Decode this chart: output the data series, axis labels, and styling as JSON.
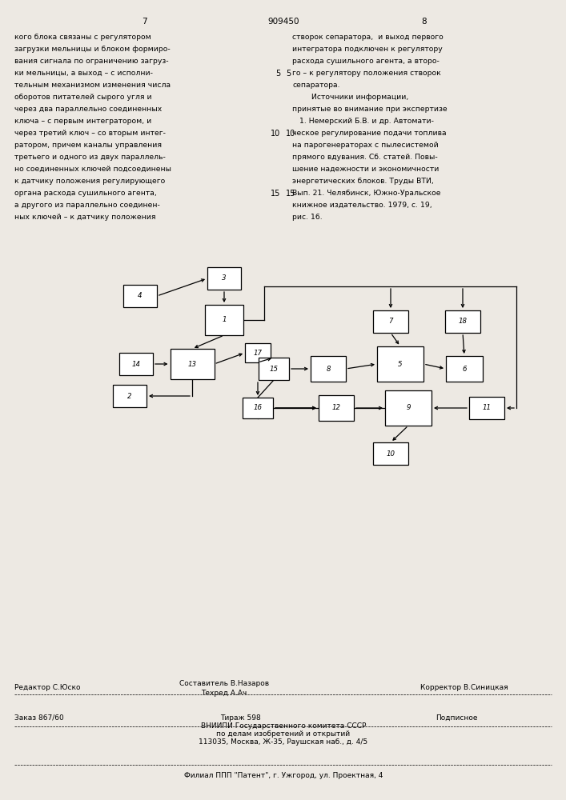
{
  "page_bg": "#ede9e3",
  "header_page_nums": [
    "7",
    "909450",
    "8"
  ],
  "left_text": [
    "кого блока связаны с регулятором",
    "загрузки мельницы и блоком формиро-",
    "вания сигнала по ограничению загруз-",
    "ки мельницы, а выход – с исполни-",
    "тельным механизмом изменения числа",
    "оборотов питателей сырого угля и",
    "через два параллельно соединенных",
    "ключа – с первым интегратором, и",
    "через третий ключ – со вторым интег-",
    "ратором, причем каналы управления",
    "третьего и одного из двух параллель-",
    "но соединенных ключей подсоединены",
    "к датчику положения регулирующего",
    "органа расхода сушильного агента,",
    "а другого из параллельно соединен-",
    "ных ключей – к датчику положения"
  ],
  "right_text": [
    "створок сепаратора,  и выход первого",
    "интегратора подключен к регулятору",
    "расхода сушильного агента, а второ-",
    "го – к регулятору положения створок",
    "сепаратора.",
    "        Источники информации,",
    "принятые во внимание при экспертизе",
    "   1. Немерский Б.В. и др. Автомати-",
    "ческое регулирование подачи топлива",
    "на парогенераторах с пылесистемой",
    "прямого вдувания. Сб. статей. Повы-",
    "шение надежности и экономичности",
    "энергетических блоков. Труды ВТИ,",
    "Вып. 21. Челябинск, Южно-Уральское",
    "книжное издательство. 1979, с. 19,",
    "рис. 16."
  ],
  "footer_line1_left": "Редактор С.Юско",
  "footer_line1_mid": "Составитель В.Назаров",
  "footer_line1_mid2": "Техред А.Ач",
  "footer_line1_right": "Корректор В.Синицкая",
  "footer_line2_left": "Заказ 867/60",
  "footer_line2_mid": "Тираж 598",
  "footer_line2_right": "Подписное",
  "footer_line3": "ВНИИПИ Государственного комитета СССР",
  "footer_line4": "по делам изобретений и открытий",
  "footer_line5": "113035, Москва, Ж-35, Раушская наб., д. 4/5",
  "footer_line6": "Филиал ППП \"Патент\", г. Ужгород, ул. Проектная, 4"
}
